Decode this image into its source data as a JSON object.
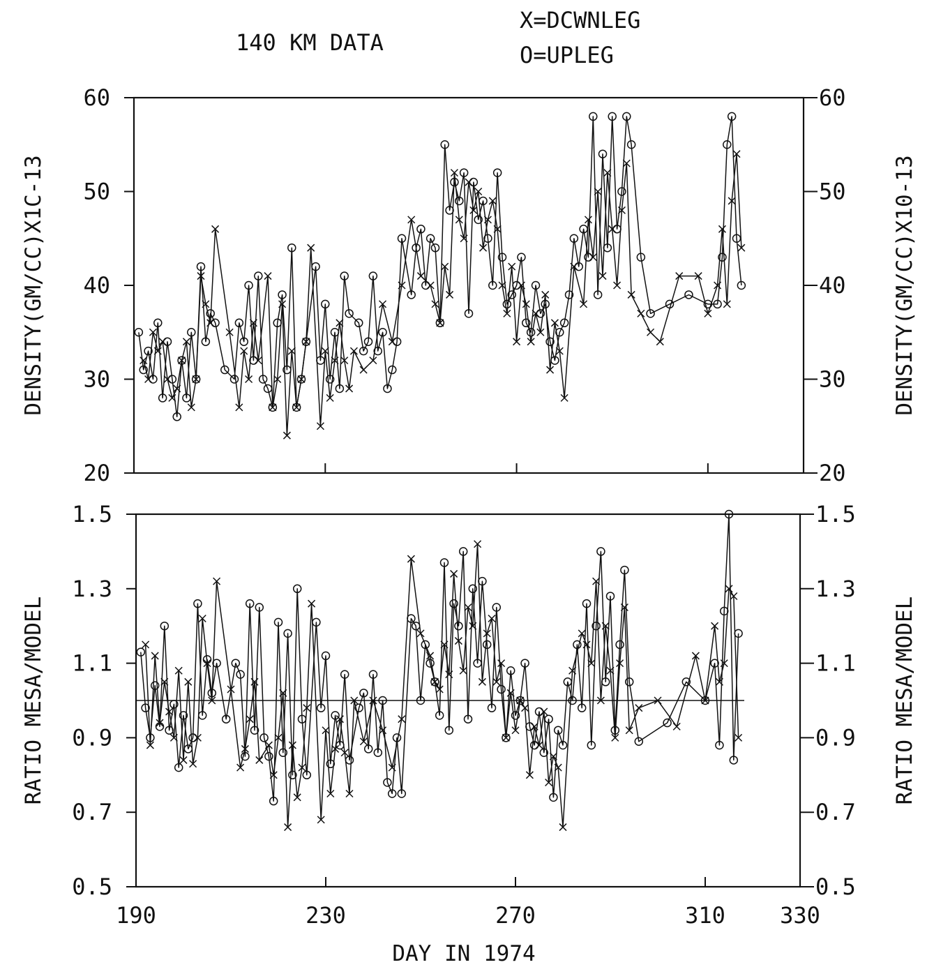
{
  "header": {
    "title": "140 KM DATA",
    "legend_down": "X=DCWNLEG",
    "legend_up": "O=UPLEG"
  },
  "chart_data": [
    {
      "type": "line",
      "panel": "top",
      "ylabel_left": "DENSITY(GM/CC)X1C-13",
      "ylabel_right": "DENSITY(GM/CC)X10-13",
      "xlim": [
        190,
        330
      ],
      "ylim": [
        20,
        60
      ],
      "yticks": [
        "20",
        "30",
        "40",
        "50",
        "60"
      ],
      "xticks_values": [
        230,
        270,
        310
      ],
      "grid": false,
      "series": [
        {
          "name": "DOWNLEG",
          "marker": "x",
          "x": [
            192,
            193,
            194,
            195,
            196,
            197,
            198,
            199,
            200,
            201,
            202,
            203,
            204,
            205,
            206,
            207,
            210,
            212,
            213,
            214,
            215,
            216,
            218,
            219,
            220,
            221,
            222,
            223,
            224,
            225,
            226,
            227,
            229,
            230,
            231,
            232,
            233,
            234,
            235,
            236,
            238,
            240,
            242,
            244,
            246,
            248,
            250,
            252,
            253,
            254,
            255,
            256,
            257,
            258,
            259,
            260,
            261,
            262,
            263,
            264,
            265,
            266,
            267,
            268,
            269,
            270,
            271,
            272,
            273,
            274,
            275,
            276,
            277,
            278,
            279,
            280,
            282,
            284,
            285,
            286,
            287,
            288,
            289,
            290,
            291,
            292,
            293,
            294,
            296,
            298,
            300,
            304,
            308,
            310,
            312,
            313,
            314,
            315,
            316,
            317
          ],
          "y": [
            32,
            30,
            35,
            33,
            34,
            30,
            28,
            29,
            32,
            34,
            27,
            30,
            41,
            38,
            36,
            46,
            35,
            27,
            33,
            30,
            36,
            32,
            41,
            27,
            30,
            38,
            24,
            33,
            27,
            30,
            34,
            44,
            25,
            33,
            28,
            32,
            36,
            32,
            29,
            33,
            31,
            32,
            38,
            34,
            40,
            47,
            41,
            40,
            38,
            36,
            42,
            39,
            52,
            47,
            45,
            51,
            48,
            50,
            44,
            47,
            49,
            46,
            40,
            37,
            42,
            34,
            40,
            38,
            34,
            37,
            35,
            39,
            31,
            36,
            33,
            28,
            42,
            38,
            47,
            43,
            50,
            41,
            52,
            46,
            40,
            48,
            53,
            39,
            37,
            35,
            34,
            41,
            41,
            37,
            40,
            46,
            38,
            49,
            54,
            44
          ]
        },
        {
          "name": "UPLEG",
          "marker": "o",
          "x": [
            191,
            192,
            193,
            194,
            195,
            196,
            197,
            198,
            199,
            200,
            201,
            202,
            203,
            204,
            205,
            206,
            207,
            209,
            211,
            212,
            213,
            214,
            215,
            216,
            217,
            218,
            219,
            220,
            221,
            222,
            223,
            224,
            225,
            226,
            228,
            229,
            230,
            231,
            232,
            233,
            234,
            235,
            237,
            238,
            239,
            240,
            241,
            242,
            243,
            244,
            245,
            246,
            248,
            249,
            250,
            251,
            252,
            253,
            254,
            255,
            256,
            257,
            258,
            259,
            260,
            261,
            262,
            263,
            264,
            265,
            266,
            267,
            268,
            269,
            270,
            271,
            272,
            273,
            274,
            275,
            276,
            277,
            278,
            279,
            280,
            281,
            282,
            283,
            284,
            285,
            286,
            287,
            288,
            289,
            290,
            291,
            292,
            293,
            294,
            296,
            298,
            302,
            306,
            310,
            312,
            313,
            314,
            315,
            316,
            317
          ],
          "y": [
            35,
            31,
            33,
            30,
            36,
            28,
            34,
            30,
            26,
            32,
            28,
            35,
            30,
            42,
            34,
            37,
            36,
            31,
            30,
            36,
            34,
            40,
            32,
            41,
            30,
            29,
            27,
            36,
            39,
            31,
            44,
            27,
            30,
            34,
            42,
            32,
            38,
            30,
            35,
            29,
            41,
            37,
            36,
            33,
            34,
            41,
            33,
            35,
            29,
            31,
            34,
            45,
            39,
            44,
            46,
            40,
            45,
            44,
            36,
            55,
            48,
            51,
            49,
            52,
            37,
            51,
            47,
            49,
            45,
            40,
            52,
            43,
            38,
            39,
            40,
            43,
            36,
            35,
            40,
            37,
            38,
            34,
            32,
            35,
            36,
            39,
            45,
            42,
            46,
            43,
            58,
            39,
            54,
            44,
            58,
            46,
            50,
            58,
            55,
            43,
            37,
            38,
            39,
            38,
            38,
            43,
            55,
            58,
            45,
            40
          ]
        }
      ]
    },
    {
      "type": "line",
      "panel": "bottom",
      "ylabel_left": "RATIO MESA/MODEL",
      "ylabel_right": "RATIO MESA/MODEL",
      "xlabel": "DAY IN 1974",
      "xlim": [
        190,
        330
      ],
      "ylim": [
        0.5,
        1.5
      ],
      "yticks": [
        "0.5",
        "0.7",
        "0.9",
        "1.1",
        "1.3",
        "1.5"
      ],
      "xticks": [
        "190",
        "230",
        "270",
        "310",
        "330"
      ],
      "xticks_values": [
        190,
        230,
        270,
        310,
        330
      ],
      "reference_line": 1.0,
      "grid": false,
      "series": [
        {
          "name": "DOWNLEG",
          "marker": "x",
          "x": [
            192,
            193,
            194,
            195,
            196,
            197,
            198,
            199,
            200,
            201,
            202,
            203,
            204,
            205,
            206,
            207,
            210,
            212,
            213,
            214,
            215,
            216,
            218,
            219,
            220,
            221,
            222,
            223,
            224,
            225,
            226,
            227,
            229,
            230,
            231,
            232,
            233,
            234,
            235,
            236,
            238,
            240,
            242,
            244,
            246,
            248,
            250,
            252,
            253,
            254,
            255,
            256,
            257,
            258,
            259,
            260,
            261,
            262,
            263,
            264,
            265,
            266,
            267,
            268,
            269,
            270,
            271,
            272,
            273,
            274,
            275,
            276,
            277,
            278,
            279,
            280,
            282,
            284,
            285,
            286,
            287,
            288,
            289,
            290,
            291,
            292,
            293,
            294,
            296,
            300,
            304,
            308,
            310,
            312,
            313,
            314,
            315,
            316,
            317
          ],
          "y": [
            1.15,
            0.88,
            1.12,
            0.94,
            1.05,
            0.97,
            0.9,
            1.08,
            0.84,
            1.05,
            0.83,
            0.9,
            1.22,
            1.1,
            1.0,
            1.32,
            1.03,
            0.82,
            0.87,
            0.95,
            1.05,
            0.84,
            0.88,
            0.8,
            0.9,
            1.02,
            0.66,
            0.88,
            0.74,
            0.82,
            0.98,
            1.26,
            0.68,
            0.92,
            0.75,
            0.87,
            0.95,
            0.86,
            0.75,
            1.0,
            0.89,
            1.0,
            0.92,
            0.82,
            0.95,
            1.38,
            1.18,
            1.12,
            1.05,
            1.03,
            1.15,
            1.07,
            1.34,
            1.16,
            1.08,
            1.25,
            1.2,
            1.42,
            1.05,
            1.18,
            1.22,
            1.05,
            1.1,
            0.9,
            1.02,
            0.92,
            1.0,
            0.98,
            0.8,
            0.93,
            0.88,
            0.97,
            0.78,
            0.85,
            0.82,
            0.66,
            1.08,
            1.18,
            1.15,
            1.1,
            1.32,
            1.0,
            1.2,
            1.08,
            0.9,
            1.1,
            1.25,
            0.92,
            0.98,
            1.0,
            0.93,
            1.12,
            1.0,
            1.2,
            1.05,
            1.1,
            1.3,
            1.28,
            0.9
          ]
        },
        {
          "name": "UPLEG",
          "marker": "o",
          "x": [
            191,
            192,
            193,
            194,
            195,
            196,
            197,
            198,
            199,
            200,
            201,
            202,
            203,
            204,
            205,
            206,
            207,
            209,
            211,
            212,
            213,
            214,
            215,
            216,
            217,
            218,
            219,
            220,
            221,
            222,
            223,
            224,
            225,
            226,
            228,
            229,
            230,
            231,
            232,
            233,
            234,
            235,
            237,
            238,
            239,
            240,
            241,
            242,
            243,
            244,
            245,
            246,
            248,
            249,
            250,
            251,
            252,
            253,
            254,
            255,
            256,
            257,
            258,
            259,
            260,
            261,
            262,
            263,
            264,
            265,
            266,
            267,
            268,
            269,
            270,
            271,
            272,
            273,
            274,
            275,
            276,
            277,
            278,
            279,
            280,
            281,
            282,
            283,
            284,
            285,
            286,
            287,
            288,
            289,
            290,
            291,
            292,
            293,
            294,
            296,
            302,
            306,
            310,
            312,
            313,
            314,
            315,
            316,
            317
          ],
          "y": [
            1.13,
            0.98,
            0.9,
            1.04,
            0.93,
            1.2,
            0.92,
            0.99,
            0.82,
            0.96,
            0.87,
            0.9,
            1.26,
            0.96,
            1.11,
            1.02,
            1.1,
            0.95,
            1.1,
            1.07,
            0.85,
            1.26,
            0.92,
            1.25,
            0.9,
            0.85,
            0.73,
            1.21,
            0.86,
            1.18,
            0.8,
            1.3,
            0.95,
            0.8,
            1.21,
            0.98,
            1.12,
            0.83,
            0.96,
            0.88,
            1.07,
            0.84,
            0.98,
            1.02,
            0.87,
            1.07,
            0.86,
            1.0,
            0.78,
            0.75,
            0.9,
            0.75,
            1.22,
            1.2,
            1.0,
            1.15,
            1.1,
            1.05,
            0.96,
            1.37,
            0.92,
            1.26,
            1.2,
            1.4,
            0.95,
            1.3,
            1.1,
            1.32,
            1.15,
            0.98,
            1.25,
            1.03,
            0.9,
            1.08,
            0.96,
            1.0,
            1.1,
            0.93,
            0.88,
            0.97,
            0.86,
            0.95,
            0.74,
            0.92,
            0.88,
            1.05,
            1.0,
            1.15,
            0.98,
            1.26,
            0.88,
            1.2,
            1.4,
            1.05,
            1.28,
            0.92,
            1.15,
            1.35,
            1.05,
            0.89,
            0.94,
            1.05,
            1.0,
            1.1,
            0.88,
            1.24,
            1.5,
            0.84,
            1.18
          ]
        }
      ]
    }
  ]
}
